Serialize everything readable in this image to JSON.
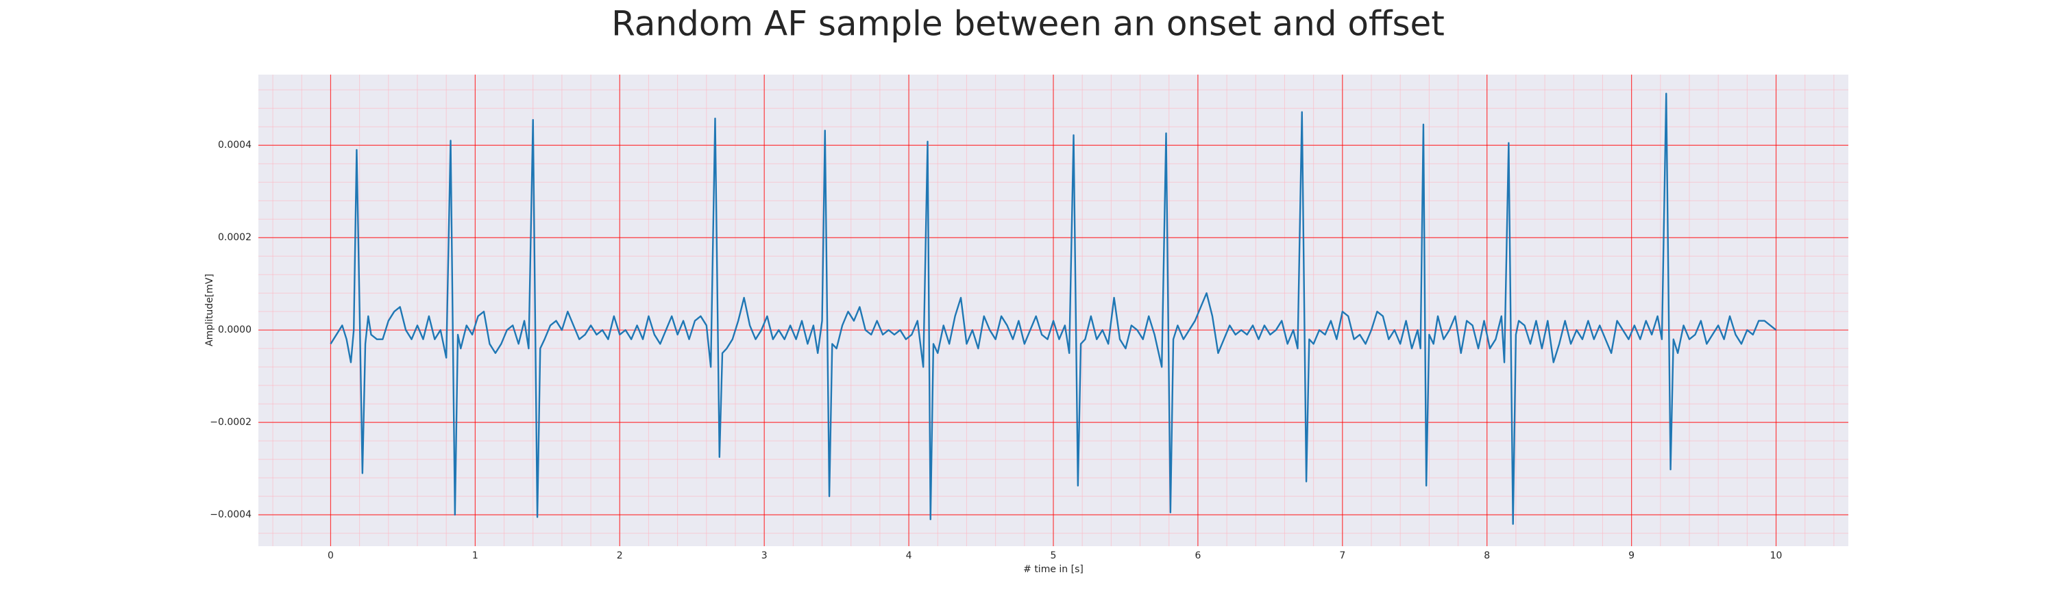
{
  "chart_data": {
    "type": "line",
    "title": "Random AF sample between an onset and offset",
    "x_label": "# time in [s]",
    "y_label": "Amplitude[mV]",
    "xlim": [
      -0.5,
      10.5
    ],
    "ylim": [
      -0.000468,
      0.000553
    ],
    "xticks": [
      0,
      1,
      2,
      3,
      4,
      5,
      6,
      7,
      8,
      9,
      10
    ],
    "yticks": [
      {
        "value": -0.0004,
        "label": "−0.0004"
      },
      {
        "value": -0.0002,
        "label": "−0.0002"
      },
      {
        "value": 0,
        "label": "0.0000"
      },
      {
        "value": 0.0002,
        "label": "0.0002"
      },
      {
        "value": 0.0004,
        "label": "0.0004"
      }
    ],
    "grid": true,
    "minor_grid": true,
    "grid_color": "#ff0000",
    "minor_grid_color": "#ffb6c1",
    "background": "#eaeaf2",
    "series": [
      {
        "color": "#1f77b4",
        "x": [
          0.0,
          0.04,
          0.08,
          0.11,
          0.14,
          0.16,
          0.18,
          0.2,
          0.22,
          0.24,
          0.26,
          0.28,
          0.32,
          0.36,
          0.4,
          0.44,
          0.48,
          0.52,
          0.56,
          0.6,
          0.64,
          0.68,
          0.72,
          0.76,
          0.8,
          0.83,
          0.86,
          0.88,
          0.9,
          0.94,
          0.98,
          1.02,
          1.06,
          1.1,
          1.14,
          1.18,
          1.22,
          1.26,
          1.3,
          1.34,
          1.37,
          1.4,
          1.43,
          1.45,
          1.48,
          1.52,
          1.56,
          1.6,
          1.64,
          1.68,
          1.72,
          1.76,
          1.8,
          1.84,
          1.88,
          1.92,
          1.96,
          2.0,
          2.04,
          2.08,
          2.12,
          2.16,
          2.2,
          2.24,
          2.28,
          2.32,
          2.36,
          2.4,
          2.44,
          2.48,
          2.52,
          2.56,
          2.6,
          2.63,
          2.66,
          2.69,
          2.71,
          2.74,
          2.78,
          2.82,
          2.86,
          2.9,
          2.94,
          2.98,
          3.02,
          3.06,
          3.1,
          3.14,
          3.18,
          3.22,
          3.26,
          3.3,
          3.34,
          3.37,
          3.4,
          3.42,
          3.45,
          3.47,
          3.5,
          3.54,
          3.58,
          3.62,
          3.66,
          3.7,
          3.74,
          3.78,
          3.82,
          3.86,
          3.9,
          3.94,
          3.98,
          4.02,
          4.06,
          4.1,
          4.13,
          4.15,
          4.17,
          4.2,
          4.24,
          4.28,
          4.32,
          4.36,
          4.4,
          4.44,
          4.48,
          4.52,
          4.56,
          4.6,
          4.64,
          4.68,
          4.72,
          4.76,
          4.8,
          4.84,
          4.88,
          4.92,
          4.96,
          5.0,
          5.04,
          5.08,
          5.11,
          5.14,
          5.17,
          5.19,
          5.22,
          5.26,
          5.3,
          5.34,
          5.38,
          5.42,
          5.46,
          5.5,
          5.54,
          5.58,
          5.62,
          5.66,
          5.7,
          5.75,
          5.78,
          5.81,
          5.83,
          5.86,
          5.9,
          5.94,
          5.98,
          6.02,
          6.06,
          6.1,
          6.14,
          6.18,
          6.22,
          6.26,
          6.3,
          6.34,
          6.38,
          6.42,
          6.46,
          6.5,
          6.54,
          6.58,
          6.62,
          6.66,
          6.69,
          6.72,
          6.75,
          6.77,
          6.8,
          6.84,
          6.88,
          6.92,
          6.96,
          7.0,
          7.04,
          7.08,
          7.12,
          7.16,
          7.2,
          7.24,
          7.28,
          7.32,
          7.36,
          7.4,
          7.44,
          7.48,
          7.52,
          7.54,
          7.56,
          7.58,
          7.6,
          7.63,
          7.66,
          7.7,
          7.74,
          7.78,
          7.82,
          7.86,
          7.9,
          7.94,
          7.98,
          8.02,
          8.06,
          8.1,
          8.12,
          8.15,
          8.18,
          8.2,
          8.22,
          8.26,
          8.3,
          8.34,
          8.38,
          8.42,
          8.46,
          8.5,
          8.54,
          8.58,
          8.62,
          8.66,
          8.7,
          8.74,
          8.78,
          8.82,
          8.86,
          8.9,
          8.94,
          8.98,
          9.02,
          9.06,
          9.1,
          9.14,
          9.18,
          9.21,
          9.24,
          9.27,
          9.29,
          9.32,
          9.36,
          9.4,
          9.44,
          9.48,
          9.52,
          9.56,
          9.6,
          9.64,
          9.68,
          9.72,
          9.76,
          9.8,
          9.84,
          9.88,
          9.92,
          9.96,
          10.0
        ],
        "values": [
          -3e-05,
          -1e-05,
          1e-05,
          -2e-05,
          -7e-05,
          0.0,
          0.00039,
          5e-05,
          -0.00031,
          -3e-05,
          3e-05,
          -1e-05,
          -2e-05,
          -2e-05,
          2e-05,
          4e-05,
          5e-05,
          0.0,
          -2e-05,
          1e-05,
          -2e-05,
          3e-05,
          -2e-05,
          0.0,
          -6e-05,
          0.00041,
          -0.0004,
          -1e-05,
          -4e-05,
          1e-05,
          -1e-05,
          3e-05,
          4e-05,
          -3e-05,
          -5e-05,
          -3e-05,
          0.0,
          1e-05,
          -3e-05,
          2e-05,
          -4e-05,
          0.000455,
          -0.000405,
          -4e-05,
          -2e-05,
          1e-05,
          2e-05,
          0.0,
          4e-05,
          1e-05,
          -2e-05,
          -1e-05,
          1e-05,
          -1e-05,
          0.0,
          -2e-05,
          3e-05,
          -1e-05,
          0.0,
          -2e-05,
          1e-05,
          -2e-05,
          3e-05,
          -1e-05,
          -3e-05,
          0.0,
          3e-05,
          -1e-05,
          2e-05,
          -2e-05,
          2e-05,
          3e-05,
          1e-05,
          -8e-05,
          0.000458,
          -0.000275,
          -5e-05,
          -4e-05,
          -2e-05,
          2e-05,
          7e-05,
          1e-05,
          -2e-05,
          0.0,
          3e-05,
          -2e-05,
          0.0,
          -2e-05,
          1e-05,
          -2e-05,
          2e-05,
          -3e-05,
          1e-05,
          -5e-05,
          2e-05,
          0.000432,
          -0.00036,
          -3e-05,
          -4e-05,
          1e-05,
          4e-05,
          2e-05,
          5e-05,
          0.0,
          -1e-05,
          2e-05,
          -1e-05,
          0.0,
          -1e-05,
          0.0,
          -2e-05,
          -1e-05,
          2e-05,
          -8e-05,
          0.000408,
          -0.00041,
          -3e-05,
          -5e-05,
          1e-05,
          -3e-05,
          3e-05,
          7e-05,
          -3e-05,
          0.0,
          -4e-05,
          3e-05,
          0.0,
          -2e-05,
          3e-05,
          1e-05,
          -2e-05,
          2e-05,
          -3e-05,
          0.0,
          3e-05,
          -1e-05,
          -2e-05,
          2e-05,
          -2e-05,
          1e-05,
          -5e-05,
          0.000422,
          -0.000337,
          -3e-05,
          -2e-05,
          3e-05,
          -2e-05,
          0.0,
          -3e-05,
          7e-05,
          -2e-05,
          -4e-05,
          1e-05,
          0.0,
          -2e-05,
          3e-05,
          -1e-05,
          -8e-05,
          0.000426,
          -0.000395,
          -2e-05,
          1e-05,
          -2e-05,
          0.0,
          2e-05,
          5e-05,
          8e-05,
          3e-05,
          -5e-05,
          -2e-05,
          1e-05,
          -1e-05,
          0.0,
          -1e-05,
          1e-05,
          -2e-05,
          1e-05,
          -1e-05,
          0.0,
          2e-05,
          -3e-05,
          0.0,
          -4e-05,
          0.000472,
          -0.000328,
          -2e-05,
          -3e-05,
          0.0,
          -1e-05,
          2e-05,
          -2e-05,
          4e-05,
          3e-05,
          -2e-05,
          -1e-05,
          -3e-05,
          0.0,
          4e-05,
          3e-05,
          -2e-05,
          0.0,
          -3e-05,
          2e-05,
          -4e-05,
          0.0,
          -4e-05,
          0.000445,
          -0.000337,
          -1e-05,
          -3e-05,
          3e-05,
          -2e-05,
          0.0,
          3e-05,
          -5e-05,
          2e-05,
          1e-05,
          -4e-05,
          2e-05,
          -4e-05,
          -2e-05,
          3e-05,
          -7e-05,
          0.000405,
          -0.00042,
          -1e-05,
          2e-05,
          1e-05,
          -3e-05,
          2e-05,
          -4e-05,
          2e-05,
          -7e-05,
          -3e-05,
          2e-05,
          -3e-05,
          0.0,
          -2e-05,
          2e-05,
          -2e-05,
          1e-05,
          -2e-05,
          -5e-05,
          2e-05,
          0.0,
          -2e-05,
          1e-05,
          -2e-05,
          2e-05,
          -1e-05,
          3e-05,
          -2e-05,
          0.000512,
          -0.000302,
          -2e-05,
          -5e-05,
          1e-05,
          -2e-05,
          -1e-05,
          2e-05,
          -3e-05,
          -1e-05,
          1e-05,
          -2e-05,
          3e-05,
          -1e-05,
          -3e-05,
          0.0,
          -1e-05,
          2e-05,
          2e-05,
          1e-05,
          0.0
        ]
      }
    ]
  }
}
